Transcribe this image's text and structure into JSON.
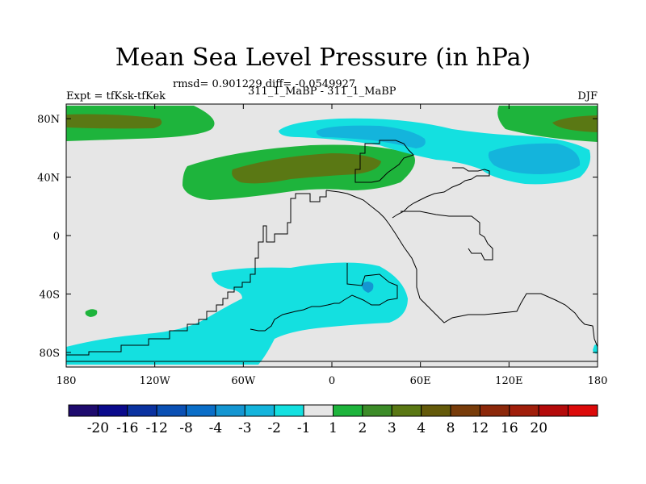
{
  "chart_data": {
    "type": "contour-map",
    "title": "Mean Sea Level Pressure (in hPa)",
    "rmsd_line": "rmsd= 0.901229 diff= -0.0549927",
    "left_label": "Expt = tfKsk-tfKek",
    "center_label": "311_1_MaBP - 311_1_MaBP",
    "right_label": "DJF",
    "x_ticks": [
      "180",
      "120W",
      "60W",
      "0",
      "60E",
      "120E",
      "180"
    ],
    "x_tick_lon": [
      -180,
      -120,
      -60,
      0,
      60,
      120,
      180
    ],
    "y_ticks": [
      "80N",
      "40N",
      "0",
      "40S",
      "80S"
    ],
    "y_tick_lat": [
      80,
      40,
      0,
      -40,
      -80
    ],
    "xlim": [
      -180,
      180
    ],
    "ylim": [
      -90,
      90
    ],
    "colorbar": {
      "colors": [
        "#1e0a6e",
        "#0a0a8c",
        "#0a32a0",
        "#0a50b4",
        "#0a6ec8",
        "#1496d2",
        "#14b4dc",
        "#14e0e0",
        "#e6e6e6",
        "#1eb43c",
        "#3c8c28",
        "#5a7814",
        "#645a0a",
        "#783c0a",
        "#8c280a",
        "#a01e0a",
        "#b40a0a",
        "#dc0a0a"
      ],
      "labels": [
        "-20",
        "-16",
        "-12",
        "-8",
        "-4",
        "-3",
        "-2",
        "-1",
        "1",
        "2",
        "3",
        "4",
        "8",
        "12",
        "16",
        "20"
      ]
    },
    "colors": {
      "background": "#e6e6e6",
      "neg1": "#14e0e0",
      "neg2": "#14b4dc",
      "neg3": "#1496d2",
      "pos1": "#1eb43c",
      "pos3": "#5a7814"
    }
  }
}
